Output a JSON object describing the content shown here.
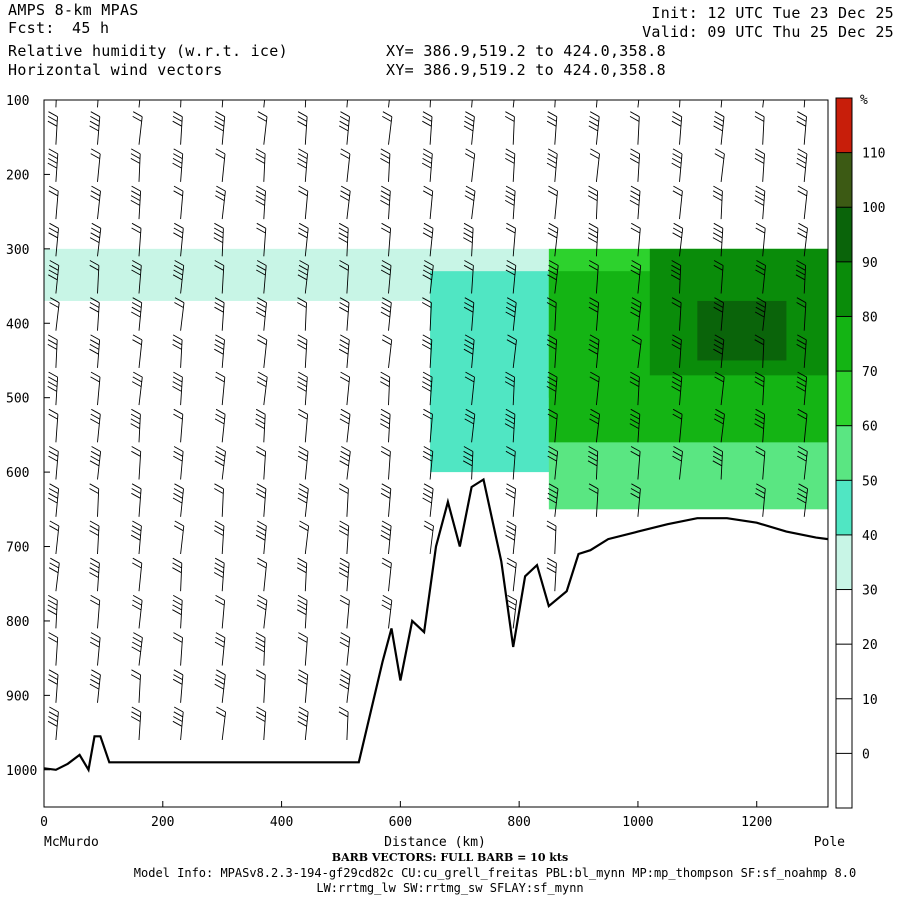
{
  "header": {
    "model": "AMPS 8-km MPAS",
    "fcst_label": "Fcst:",
    "fcst_value": "45 h",
    "field1": "Relative humidity (w.r.t. ice)",
    "field2": "Horizontal wind vectors",
    "xy1": "XY= 386.9,519.2 to 424.0,358.8",
    "xy2": "XY= 386.9,519.2 to 424.0,358.8",
    "init": "Init: 12 UTC Tue 23 Dec 25",
    "valid": "Valid: 09 UTC Thu 25 Dec 25"
  },
  "footer": {
    "barb_note": "BARB VECTORS: FULL BARB = 10 kts",
    "model_info": "Model Info: MPASv8.2.3-194-gf29cd82c CU:cu_grell_freitas PBL:bl_mynn MP:mp_thompson SF:sf_noahmp 8.0",
    "model_info2": "LW:rrtmg_lw SW:rrtmg_sw SFLAY:sf_mynn"
  },
  "chart_data": {
    "type": "heatmap",
    "title": "Relative humidity (w.r.t. ice)",
    "xlabel": "Distance (km)",
    "ylabel": "",
    "xlim": [
      0,
      1320
    ],
    "ylim": [
      1050,
      100
    ],
    "x_ticks": [
      "0",
      "200",
      "400",
      "600",
      "800",
      "1000",
      "1200"
    ],
    "y_ticks": [
      "100",
      "200",
      "300",
      "400",
      "500",
      "600",
      "700",
      "800",
      "900",
      "1000"
    ],
    "x_end_labels": {
      "left": "McMurdo",
      "right": "Pole"
    },
    "colorbar": {
      "unit": "%",
      "ticks": [
        "0",
        "10",
        "20",
        "30",
        "40",
        "50",
        "60",
        "70",
        "80",
        "90",
        "100",
        "110"
      ],
      "colors": [
        "#ffffff",
        "#ffffff",
        "#ffffff",
        "#ffffff",
        "#c8f5e6",
        "#50e6c3",
        "#5ae682",
        "#2dd22d",
        "#14b414",
        "#0a8c0a",
        "#0a640a",
        "#3c5a14",
        "#c81e0a"
      ]
    },
    "rh_regions": [
      {
        "band": "30-40",
        "x": [
          0,
          1320
        ],
        "p": [
          300,
          370
        ]
      },
      {
        "band": "40-50",
        "x": [
          650,
          1320
        ],
        "p": [
          330,
          600
        ]
      },
      {
        "band": "50-60",
        "x": [
          850,
          1320
        ],
        "p": [
          330,
          650
        ]
      },
      {
        "band": "60-70",
        "x": [
          850,
          1320
        ],
        "p": [
          300,
          500
        ]
      },
      {
        "band": "70-80",
        "x": [
          850,
          1320
        ],
        "p": [
          330,
          560
        ]
      },
      {
        "band": "80-90",
        "x": [
          1020,
          1320
        ],
        "p": [
          300,
          470
        ]
      },
      {
        "band": "90-100",
        "x": [
          1100,
          1250
        ],
        "p": [
          370,
          450
        ]
      }
    ],
    "terrain": [
      [
        0,
        998
      ],
      [
        20,
        1000
      ],
      [
        40,
        992
      ],
      [
        60,
        980
      ],
      [
        75,
        1000
      ],
      [
        85,
        955
      ],
      [
        95,
        955
      ],
      [
        110,
        990
      ],
      [
        530,
        990
      ],
      [
        570,
        855
      ],
      [
        585,
        810
      ],
      [
        600,
        880
      ],
      [
        620,
        800
      ],
      [
        640,
        815
      ],
      [
        660,
        700
      ],
      [
        680,
        640
      ],
      [
        700,
        700
      ],
      [
        720,
        620
      ],
      [
        740,
        610
      ],
      [
        770,
        720
      ],
      [
        790,
        835
      ],
      [
        810,
        740
      ],
      [
        830,
        725
      ],
      [
        850,
        780
      ],
      [
        880,
        760
      ],
      [
        900,
        710
      ],
      [
        920,
        705
      ],
      [
        950,
        690
      ],
      [
        1000,
        680
      ],
      [
        1050,
        670
      ],
      [
        1100,
        662
      ],
      [
        1150,
        662
      ],
      [
        1200,
        668
      ],
      [
        1250,
        680
      ],
      [
        1300,
        688
      ],
      [
        1320,
        690
      ]
    ],
    "wind_columns_km": [
      20,
      90,
      160,
      230,
      300,
      370,
      440,
      510,
      580,
      650,
      720,
      790,
      860,
      930,
      1000,
      1070,
      1140,
      1210,
      1280
    ],
    "wind_levels_hpa": [
      110,
      160,
      210,
      260,
      310,
      360,
      410,
      460,
      510,
      560,
      610,
      660,
      710,
      760,
      810,
      860,
      910,
      960
    ]
  }
}
